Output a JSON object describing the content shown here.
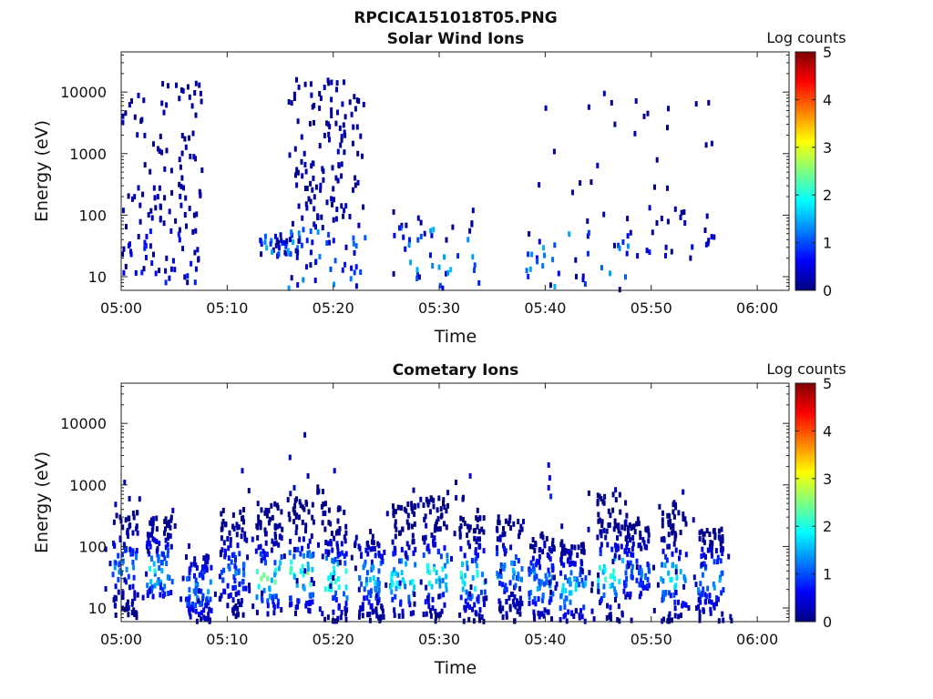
{
  "figure_title": "RPCICA151018T05.PNG",
  "colorscale": [
    "#00007f",
    "#0000ff",
    "#007fff",
    "#00ffff",
    "#7fff7f",
    "#ffff00",
    "#ff7f00",
    "#ff0000",
    "#7f0000"
  ],
  "chart_data": [
    {
      "type": "heatmap",
      "title": "Solar Wind Ions",
      "xlabel": "Time",
      "ylabel": "Energy (eV)",
      "yscale": "log",
      "xlim": [
        "05:00",
        "06:03"
      ],
      "ylim": [
        6,
        45000
      ],
      "x_ticks": [
        "05:00",
        "05:10",
        "05:20",
        "05:30",
        "05:40",
        "05:50",
        "06:00"
      ],
      "y_ticks": [
        "10",
        "100",
        "1000",
        "10000"
      ],
      "colorbar": {
        "label": "Log counts",
        "range": [
          0,
          5
        ],
        "ticks": [
          "0",
          "1",
          "2",
          "3",
          "4",
          "5"
        ]
      },
      "clusters": [
        {
          "t0": 0.0,
          "t1": 7.5,
          "e0": 8,
          "e1": 15000,
          "count": 140,
          "level_max": 0.8
        },
        {
          "t0": 13.0,
          "t1": 17.0,
          "e0": 20,
          "e1": 50,
          "count": 40,
          "level_max": 1.5
        },
        {
          "t0": 15.5,
          "t1": 23.0,
          "e0": 6,
          "e1": 16000,
          "count": 170,
          "level_max": 1.5
        },
        {
          "t0": 25.5,
          "t1": 34.0,
          "e0": 6,
          "e1": 120,
          "count": 45,
          "level_max": 1.6
        },
        {
          "t0": 35.0,
          "t1": 56.0,
          "e0": 50,
          "e1": 10000,
          "count": 30,
          "level_max": 0.6
        },
        {
          "t0": 38.0,
          "t1": 48.0,
          "e0": 6,
          "e1": 60,
          "count": 35,
          "level_max": 1.7
        },
        {
          "t0": 47.0,
          "t1": 56.0,
          "e0": 20,
          "e1": 150,
          "count": 25,
          "level_max": 0.9
        }
      ]
    },
    {
      "type": "heatmap",
      "title": "Cometary Ions",
      "xlabel": "Time",
      "ylabel": "Energy (eV)",
      "yscale": "log",
      "xlim": [
        "05:00",
        "06:03"
      ],
      "ylim": [
        6,
        45000
      ],
      "x_ticks": [
        "05:00",
        "05:10",
        "05:20",
        "05:30",
        "05:40",
        "05:50",
        "06:00"
      ],
      "y_ticks": [
        "10",
        "100",
        "1000",
        "10000"
      ],
      "colorbar": {
        "label": "Log counts",
        "range": [
          0,
          5
        ],
        "ticks": [
          "0",
          "1",
          "2",
          "3",
          "4",
          "5"
        ]
      },
      "bursts": [
        {
          "t": 0.3,
          "e_min": 7,
          "e_max": 400,
          "peak_energy": 50,
          "peak_level": 1.4
        },
        {
          "t": 3.5,
          "e_min": 15,
          "e_max": 300,
          "peak_energy": 40,
          "peak_level": 2.0
        },
        {
          "t": 7.2,
          "e_min": 6,
          "e_max": 70,
          "peak_energy": 20,
          "peak_level": 1.5
        },
        {
          "t": 10.5,
          "e_min": 7,
          "e_max": 400,
          "peak_energy": 40,
          "peak_level": 1.4
        },
        {
          "t": 13.8,
          "e_min": 8,
          "e_max": 500,
          "peak_energy": 30,
          "peak_level": 2.5
        },
        {
          "t": 16.8,
          "e_min": 8,
          "e_max": 600,
          "peak_energy": 35,
          "peak_level": 2.6
        },
        {
          "t": 20.0,
          "e_min": 6,
          "e_max": 500,
          "peak_energy": 30,
          "peak_level": 2.5
        },
        {
          "t": 23.5,
          "e_min": 6,
          "e_max": 120,
          "peak_energy": 30,
          "peak_level": 1.8
        },
        {
          "t": 26.5,
          "e_min": 6,
          "e_max": 500,
          "peak_energy": 30,
          "peak_level": 2.2
        },
        {
          "t": 29.5,
          "e_min": 6,
          "e_max": 700,
          "peak_energy": 35,
          "peak_level": 2.3
        },
        {
          "t": 33.0,
          "e_min": 6,
          "e_max": 400,
          "peak_energy": 30,
          "peak_level": 2.2
        },
        {
          "t": 36.5,
          "e_min": 6,
          "e_max": 300,
          "peak_energy": 40,
          "peak_level": 1.6
        },
        {
          "t": 39.5,
          "e_min": 6,
          "e_max": 150,
          "peak_energy": 25,
          "peak_level": 1.6
        },
        {
          "t": 42.5,
          "e_min": 6,
          "e_max": 120,
          "peak_energy": 20,
          "peak_level": 1.8
        },
        {
          "t": 46.0,
          "e_min": 6,
          "e_max": 700,
          "peak_energy": 35,
          "peak_level": 2.5
        },
        {
          "t": 48.5,
          "e_min": 15,
          "e_max": 250,
          "peak_energy": 40,
          "peak_level": 1.3
        },
        {
          "t": 52.0,
          "e_min": 6,
          "e_max": 500,
          "peak_energy": 30,
          "peak_level": 2.0
        },
        {
          "t": 55.5,
          "e_min": 6,
          "e_max": 200,
          "peak_energy": 30,
          "peak_level": 1.6
        }
      ],
      "high_energy_points": [
        {
          "t": 0.2,
          "e": 1100,
          "level": 0.3
        },
        {
          "t": 11.3,
          "e": 1700,
          "level": 0.3
        },
        {
          "t": 15.8,
          "e": 2800,
          "level": 0.3
        },
        {
          "t": 17.2,
          "e": 6500,
          "level": 0.3
        },
        {
          "t": 17.5,
          "e": 1400,
          "level": 0.3
        },
        {
          "t": 20.0,
          "e": 1700,
          "level": 0.3
        },
        {
          "t": 16.2,
          "e": 900,
          "level": 0.4
        },
        {
          "t": 32.8,
          "e": 1400,
          "level": 0.4
        },
        {
          "t": 40.2,
          "e": 2100,
          "level": 0.5
        },
        {
          "t": 40.3,
          "e": 1300,
          "level": 0.6
        },
        {
          "t": 40.2,
          "e": 900,
          "level": 0.5
        },
        {
          "t": 40.4,
          "e": 650,
          "level": 0.8
        }
      ]
    }
  ]
}
